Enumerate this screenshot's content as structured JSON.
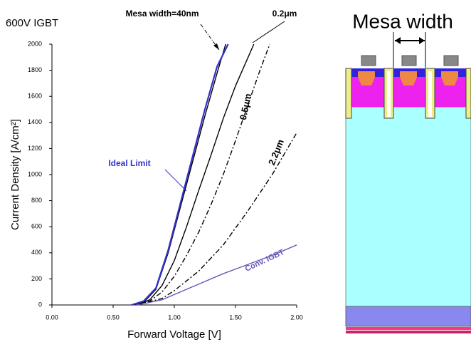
{
  "chart_data": {
    "type": "line",
    "title": "600V IGBT",
    "x_label": "Forward Voltage [V]",
    "y_label": "Current Density [A/cm²]",
    "xlim": [
      0,
      2
    ],
    "ylim": [
      0,
      2000
    ],
    "xticks": [
      {
        "value": 0,
        "label": "0.00"
      },
      {
        "value": 0.5,
        "label": "0.50"
      },
      {
        "value": 1,
        "label": "1.00"
      },
      {
        "value": 1.5,
        "label": "1.50"
      },
      {
        "value": 2,
        "label": "2.00"
      }
    ],
    "yticks": [
      0,
      200,
      400,
      600,
      800,
      1000,
      1200,
      1400,
      1600,
      1800,
      2000
    ],
    "series": [
      {
        "name": "Mesa width=40nm",
        "color": "#000000",
        "dash": "solid",
        "x": [
          0.65,
          0.75,
          0.85,
          0.95,
          1.05,
          1.15,
          1.25,
          1.35,
          1.42
        ],
        "values": [
          0,
          20,
          120,
          400,
          750,
          1100,
          1450,
          1780,
          2000
        ]
      },
      {
        "name": "0.2μm",
        "color": "#000000",
        "dash": "solid",
        "x": [
          0.7,
          0.8,
          0.9,
          1.0,
          1.1,
          1.2,
          1.3,
          1.4,
          1.5,
          1.65
        ],
        "values": [
          0,
          40,
          150,
          340,
          600,
          880,
          1150,
          1430,
          1680,
          2000
        ]
      },
      {
        "name": "0.5μm",
        "color": "#000000",
        "dash": "dashdot",
        "x": [
          0.7,
          0.8,
          0.9,
          1.0,
          1.1,
          1.2,
          1.3,
          1.4,
          1.5,
          1.6,
          1.7,
          1.78
        ],
        "values": [
          0,
          30,
          100,
          220,
          380,
          560,
          770,
          1000,
          1260,
          1530,
          1800,
          2000
        ]
      },
      {
        "name": "2.2μm",
        "color": "#000000",
        "dash": "dashdot",
        "x": [
          0.7,
          0.9,
          1.0,
          1.2,
          1.4,
          1.6,
          1.8,
          2.0
        ],
        "values": [
          0,
          50,
          110,
          260,
          460,
          720,
          1000,
          1320
        ]
      },
      {
        "name": "Ideal Limit",
        "color": "#3333cc",
        "dash": "solid",
        "x": [
          0.65,
          0.75,
          0.85,
          0.95,
          1.05,
          1.15,
          1.25,
          1.35,
          1.44
        ],
        "values": [
          0,
          30,
          130,
          420,
          780,
          1140,
          1500,
          1830,
          2000
        ]
      },
      {
        "name": "Conv. IGBT",
        "color": "#6655bb",
        "dash": "solid",
        "x": [
          0.7,
          0.9,
          1.0,
          1.2,
          1.4,
          1.6,
          1.8,
          2.0
        ],
        "values": [
          0,
          40,
          80,
          160,
          240,
          310,
          380,
          460
        ]
      }
    ]
  },
  "diagram": {
    "title": "Mesa width"
  }
}
